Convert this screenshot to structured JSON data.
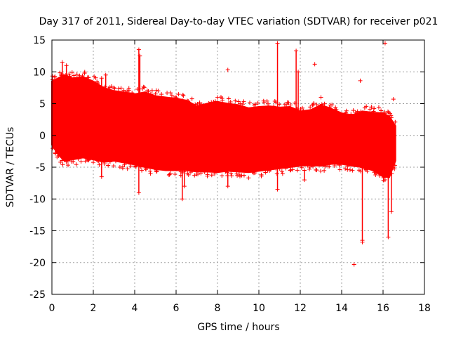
{
  "chart_data": {
    "type": "scatter",
    "title": "Day 317 of 2011, Sidereal Day-to-day VTEC variation (SDTVAR) for receiver p021",
    "xlabel": "GPS time / hours",
    "ylabel": "SDTVAR / TECUs",
    "xlim": [
      0,
      18
    ],
    "ylim": [
      -25,
      15
    ],
    "xticks": [
      0,
      2,
      4,
      6,
      8,
      10,
      12,
      14,
      16,
      18
    ],
    "yticks": [
      15,
      10,
      5,
      0,
      -5,
      -10,
      -15,
      -20,
      -25
    ],
    "grid": true,
    "color": "#ff0000",
    "band_upper": [
      {
        "x": 0.0,
        "y": 8.5
      },
      {
        "x": 0.3,
        "y": 9.0
      },
      {
        "x": 0.6,
        "y": 9.5
      },
      {
        "x": 1.0,
        "y": 9.0
      },
      {
        "x": 1.5,
        "y": 9.2
      },
      {
        "x": 2.0,
        "y": 8.5
      },
      {
        "x": 2.5,
        "y": 7.5
      },
      {
        "x": 3.0,
        "y": 7.0
      },
      {
        "x": 3.5,
        "y": 6.8
      },
      {
        "x": 4.0,
        "y": 6.5
      },
      {
        "x": 4.5,
        "y": 6.8
      },
      {
        "x": 5.0,
        "y": 6.2
      },
      {
        "x": 5.5,
        "y": 6.0
      },
      {
        "x": 6.0,
        "y": 5.8
      },
      {
        "x": 6.5,
        "y": 5.5
      },
      {
        "x": 7.0,
        "y": 4.6
      },
      {
        "x": 7.5,
        "y": 5.0
      },
      {
        "x": 8.0,
        "y": 5.3
      },
      {
        "x": 8.5,
        "y": 5.0
      },
      {
        "x": 9.0,
        "y": 4.8
      },
      {
        "x": 9.5,
        "y": 4.3
      },
      {
        "x": 10.0,
        "y": 4.5
      },
      {
        "x": 10.5,
        "y": 4.6
      },
      {
        "x": 11.0,
        "y": 4.4
      },
      {
        "x": 11.5,
        "y": 4.5
      },
      {
        "x": 12.0,
        "y": 3.8
      },
      {
        "x": 12.5,
        "y": 4.0
      },
      {
        "x": 13.0,
        "y": 4.8
      },
      {
        "x": 13.5,
        "y": 4.2
      },
      {
        "x": 14.0,
        "y": 3.5
      },
      {
        "x": 14.5,
        "y": 3.2
      },
      {
        "x": 15.0,
        "y": 3.8
      },
      {
        "x": 15.5,
        "y": 3.6
      },
      {
        "x": 16.0,
        "y": 3.5
      },
      {
        "x": 16.3,
        "y": 3.0
      },
      {
        "x": 16.6,
        "y": 1.5
      }
    ],
    "band_lower": [
      {
        "x": 0.0,
        "y": -1.5
      },
      {
        "x": 0.3,
        "y": -3.0
      },
      {
        "x": 0.6,
        "y": -4.0
      },
      {
        "x": 1.0,
        "y": -3.8
      },
      {
        "x": 1.5,
        "y": -3.5
      },
      {
        "x": 2.0,
        "y": -3.8
      },
      {
        "x": 2.5,
        "y": -4.2
      },
      {
        "x": 3.0,
        "y": -4.0
      },
      {
        "x": 3.5,
        "y": -4.3
      },
      {
        "x": 4.0,
        "y": -4.6
      },
      {
        "x": 4.5,
        "y": -5.0
      },
      {
        "x": 5.0,
        "y": -5.3
      },
      {
        "x": 5.5,
        "y": -5.5
      },
      {
        "x": 6.0,
        "y": -5.5
      },
      {
        "x": 6.5,
        "y": -5.5
      },
      {
        "x": 7.0,
        "y": -5.7
      },
      {
        "x": 7.5,
        "y": -5.7
      },
      {
        "x": 8.0,
        "y": -5.8
      },
      {
        "x": 8.5,
        "y": -5.6
      },
      {
        "x": 9.0,
        "y": -5.7
      },
      {
        "x": 9.5,
        "y": -5.8
      },
      {
        "x": 10.0,
        "y": -5.6
      },
      {
        "x": 10.5,
        "y": -5.4
      },
      {
        "x": 11.0,
        "y": -5.2
      },
      {
        "x": 11.5,
        "y": -5.0
      },
      {
        "x": 12.0,
        "y": -4.8
      },
      {
        "x": 12.5,
        "y": -4.7
      },
      {
        "x": 13.0,
        "y": -4.8
      },
      {
        "x": 13.5,
        "y": -4.5
      },
      {
        "x": 14.0,
        "y": -4.5
      },
      {
        "x": 14.5,
        "y": -4.8
      },
      {
        "x": 15.0,
        "y": -5.0
      },
      {
        "x": 15.5,
        "y": -5.5
      },
      {
        "x": 16.0,
        "y": -6.5
      },
      {
        "x": 16.3,
        "y": -6.6
      },
      {
        "x": 16.6,
        "y": -4.0
      }
    ],
    "spikes": [
      {
        "x": 0.5,
        "y0": 5.0,
        "y1": 11.5
      },
      {
        "x": 0.7,
        "y0": 5.0,
        "y1": 11.0
      },
      {
        "x": 2.4,
        "y0": -6.5,
        "y1": 9.0
      },
      {
        "x": 2.6,
        "y0": 5.0,
        "y1": 9.5
      },
      {
        "x": 4.2,
        "y0": -9.0,
        "y1": 13.5
      },
      {
        "x": 4.25,
        "y0": 5.0,
        "y1": 12.5
      },
      {
        "x": 6.3,
        "y0": -10.0,
        "y1": 5.5
      },
      {
        "x": 6.4,
        "y0": -8.0,
        "y1": 3.0
      },
      {
        "x": 8.5,
        "y0": -8.0,
        "y1": 3.0
      },
      {
        "x": 10.9,
        "y0": -8.5,
        "y1": 14.5
      },
      {
        "x": 11.8,
        "y0": 3.0,
        "y1": 13.3
      },
      {
        "x": 11.9,
        "y0": 2.0,
        "y1": 10.0
      },
      {
        "x": 12.2,
        "y0": -7.0,
        "y1": -5.5
      },
      {
        "x": 15.0,
        "y0": -16.5,
        "y1": -5.0
      },
      {
        "x": 16.25,
        "y0": -16.0,
        "y1": -5.5
      },
      {
        "x": 16.4,
        "y0": -12.0,
        "y1": -5.0
      }
    ],
    "outliers": [
      {
        "x": 8.5,
        "y": 10.3
      },
      {
        "x": 12.7,
        "y": 11.2
      },
      {
        "x": 14.6,
        "y": -20.3
      },
      {
        "x": 14.9,
        "y": 8.6
      },
      {
        "x": 16.1,
        "y": 14.5
      },
      {
        "x": 16.5,
        "y": 5.7
      },
      {
        "x": 13.0,
        "y": 6.0
      },
      {
        "x": 3.0,
        "y": 7.5
      },
      {
        "x": 15.0,
        "y": -16.8
      }
    ]
  }
}
